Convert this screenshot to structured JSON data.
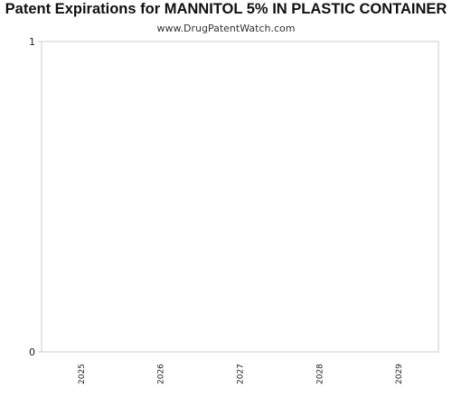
{
  "header": {
    "title": "Patent Expirations for MANNITOL 5% IN PLASTIC CONTAINER",
    "subtitle": "www.DrugPatentWatch.com"
  },
  "chart_data": {
    "type": "bar",
    "categories": [
      "2025",
      "2026",
      "2027",
      "2028",
      "2029"
    ],
    "values": [
      0,
      0,
      0,
      0,
      0
    ],
    "ylim": [
      0,
      1
    ],
    "yticks": [
      "0",
      "1"
    ],
    "grid": false,
    "legend": "none",
    "colors": {
      "axis": "#cccccc",
      "text": "#222222"
    }
  }
}
